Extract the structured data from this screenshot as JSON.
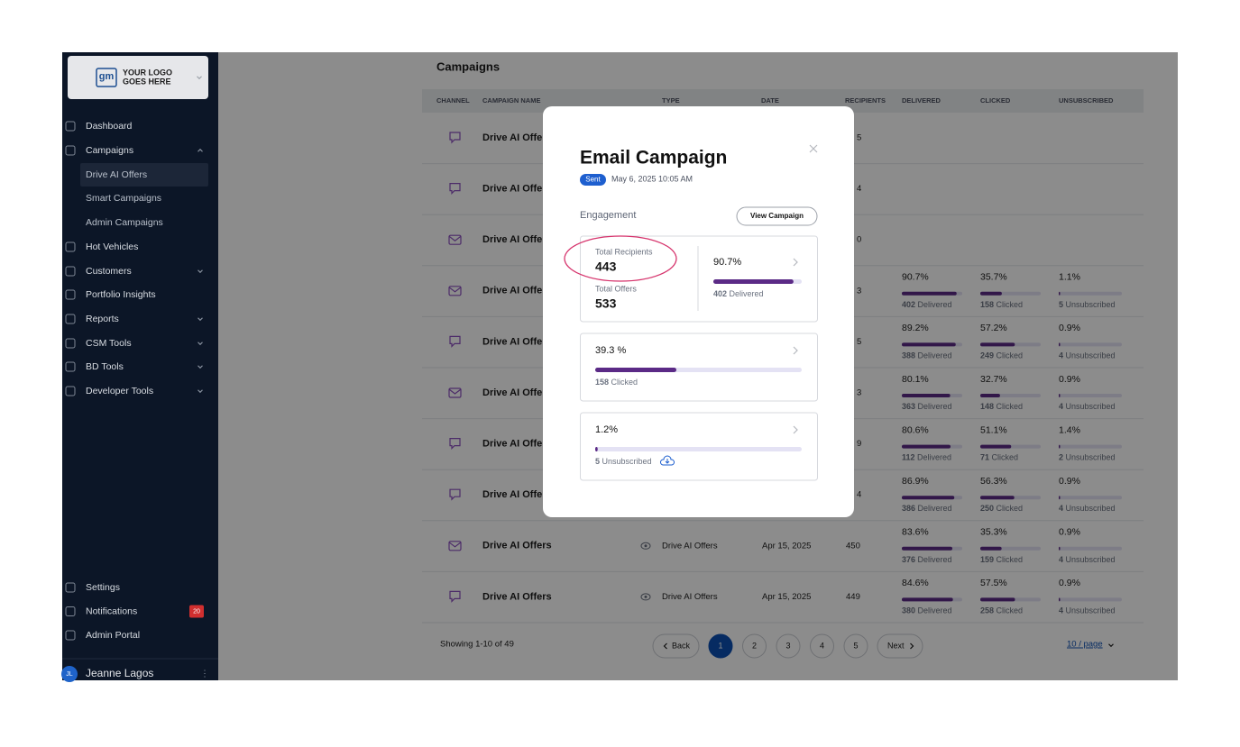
{
  "sidebar": {
    "logo_mark": "gm",
    "logo": [
      "YOUR LOGO",
      "GOES HERE"
    ],
    "nav": [
      {
        "label": "Dashboard"
      },
      {
        "label": "Campaigns",
        "chevron": "up"
      },
      {
        "label": "Drive AI Offers",
        "sub": true,
        "active": true
      },
      {
        "label": "Smart Campaigns",
        "sub": true
      },
      {
        "label": "Admin Campaigns",
        "sub": true
      },
      {
        "label": "Hot Vehicles"
      },
      {
        "label": "Customers",
        "chevron": "down"
      },
      {
        "label": "Portfolio Insights"
      },
      {
        "label": "Reports",
        "chevron": "down"
      },
      {
        "label": "CSM Tools",
        "chevron": "down"
      },
      {
        "label": "BD Tools",
        "chevron": "down"
      },
      {
        "label": "Developer Tools",
        "chevron": "down"
      }
    ],
    "bottom": [
      {
        "label": "Settings"
      },
      {
        "label": "Notifications",
        "badge": "20"
      },
      {
        "label": "Admin Portal"
      }
    ],
    "user": {
      "initials": "JL",
      "name": "Jeanne Lagos"
    }
  },
  "table": {
    "title": "Campaigns",
    "headers": [
      "CHANNEL",
      "CAMPAIGN NAME",
      "TYPE",
      "DATE",
      "RECIPIENTS",
      "DELIVERED",
      "CLICKED",
      "UNSUBSCRIBED"
    ],
    "rows": [
      {
        "channel": "sms",
        "name": "Drive AI Offers",
        "recipients": "5"
      },
      {
        "channel": "sms",
        "name": "Drive AI Offers",
        "recipients": "4"
      },
      {
        "channel": "email",
        "name": "Drive AI Offers",
        "recipients": "0"
      },
      {
        "channel": "email",
        "name": "Drive AI Offers",
        "recipients": "3",
        "metrics": [
          {
            "pct": {
              "value": 90.7,
              "label": "90.7%"
            },
            "count": 402,
            "label": "Delivered"
          },
          {
            "pct": {
              "value": 35.7,
              "label": "35.7%"
            },
            "count": 158,
            "label": "Clicked"
          },
          {
            "pct": {
              "value": 1.1,
              "label": "1.1%"
            },
            "count": 5,
            "label": "Unsubscribed"
          }
        ]
      },
      {
        "channel": "sms",
        "name": "Drive AI Offers",
        "recipients": "5",
        "metrics": [
          {
            "pct": {
              "value": 89.2,
              "label": "89.2%"
            },
            "count": 388,
            "label": "Delivered"
          },
          {
            "pct": {
              "value": 57.2,
              "label": "57.2%"
            },
            "count": 249,
            "label": "Clicked"
          },
          {
            "pct": {
              "value": 0.9,
              "label": "0.9%"
            },
            "count": 4,
            "label": "Unsubscribed"
          }
        ]
      },
      {
        "channel": "email",
        "name": "Drive AI Offers",
        "recipients": "3",
        "metrics": [
          {
            "pct": {
              "value": 80.1,
              "label": "80.1%"
            },
            "count": 363,
            "label": "Delivered"
          },
          {
            "pct": {
              "value": 32.7,
              "label": "32.7%"
            },
            "count": 148,
            "label": "Clicked"
          },
          {
            "pct": {
              "value": 0.9,
              "label": "0.9%"
            },
            "count": 4,
            "label": "Unsubscribed"
          }
        ]
      },
      {
        "channel": "sms",
        "name": "Drive AI Offers",
        "recipients": "9",
        "metrics": [
          {
            "pct": {
              "value": 80.6,
              "label": "80.6%"
            },
            "count": 112,
            "label": "Delivered"
          },
          {
            "pct": {
              "value": 51.1,
              "label": "51.1%"
            },
            "count": 71,
            "label": "Clicked"
          },
          {
            "pct": {
              "value": 1.4,
              "label": "1.4%"
            },
            "count": 2,
            "label": "Unsubscribed"
          }
        ]
      },
      {
        "channel": "sms",
        "name": "Drive AI Offers",
        "recipients": "4",
        "metrics": [
          {
            "pct": {
              "value": 86.9,
              "label": "86.9%"
            },
            "count": 386,
            "label": "Delivered"
          },
          {
            "pct": {
              "value": 56.3,
              "label": "56.3%"
            },
            "count": 250,
            "label": "Clicked"
          },
          {
            "pct": {
              "value": 0.9,
              "label": "0.9%"
            },
            "count": 4,
            "label": "Unsubscribed"
          }
        ]
      },
      {
        "channel": "email",
        "name": "Drive AI Offers",
        "type": "Drive AI Offers",
        "date": "Apr 15, 2025",
        "recipients": "450",
        "metrics": [
          {
            "pct": {
              "value": 83.6,
              "label": "83.6%"
            },
            "count": 376,
            "label": "Delivered"
          },
          {
            "pct": {
              "value": 35.3,
              "label": "35.3%"
            },
            "count": 159,
            "label": "Clicked"
          },
          {
            "pct": {
              "value": 0.9,
              "label": "0.9%"
            },
            "count": 4,
            "label": "Unsubscribed"
          }
        ]
      },
      {
        "channel": "sms",
        "name": "Drive AI Offers",
        "type": "Drive AI Offers",
        "date": "Apr 15, 2025",
        "recipients": "449",
        "metrics": [
          {
            "pct": {
              "value": 84.6,
              "label": "84.6%"
            },
            "count": 380,
            "label": "Delivered"
          },
          {
            "pct": {
              "value": 57.5,
              "label": "57.5%"
            },
            "count": 258,
            "label": "Clicked"
          },
          {
            "pct": {
              "value": 0.9,
              "label": "0.9%"
            },
            "count": 4,
            "label": "Unsubscribed"
          }
        ]
      }
    ]
  },
  "pagination": {
    "showing": "Showing 1-10 of 49",
    "back": "Back",
    "pages": [
      1,
      2,
      3,
      4,
      5
    ],
    "current": 1,
    "next": "Next",
    "page_size": "10 / page"
  },
  "modal": {
    "title": "Email Campaign",
    "status": "Sent",
    "date": "May 6, 2025 10:05 AM",
    "section": "Engagement",
    "button": "View Campaign",
    "total_recipients_label": "Total Recipients",
    "total_recipients": 443,
    "total_offers_label": "Total Offers",
    "total_offers": 533,
    "cards": [
      {
        "pct": {
          "value": 90.7,
          "label": "90.7%"
        },
        "count": 402,
        "label": "Delivered"
      },
      {
        "pct": {
          "value": 39.3,
          "label": "39.3 %"
        },
        "count": 158,
        "label": "Clicked"
      },
      {
        "pct": {
          "value": 1.2,
          "label": "1.2%"
        },
        "count": 5,
        "label": "Unsubscribed"
      }
    ]
  }
}
